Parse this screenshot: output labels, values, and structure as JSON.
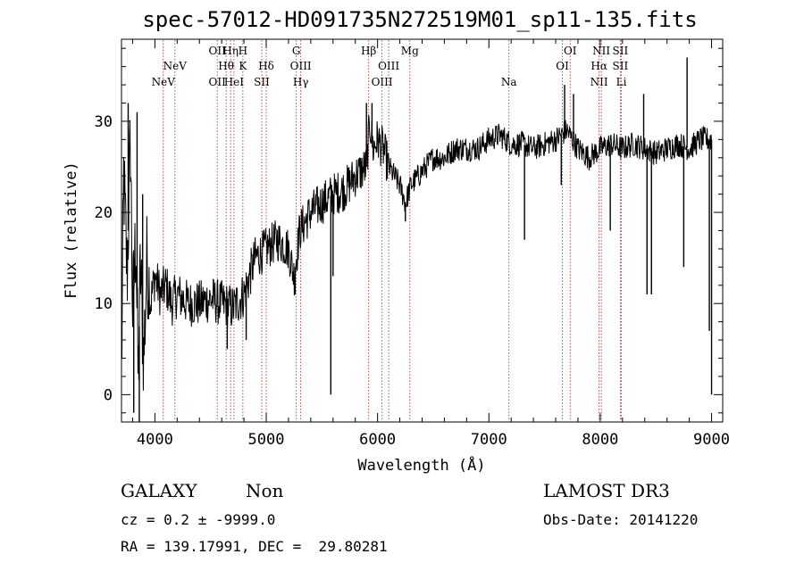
{
  "chart_data": {
    "type": "line",
    "title": "spec-57012-HD091735N272519M01_sp11-135.fits",
    "xlabel": "Wavelength (Å)",
    "ylabel": "Flux (relative)",
    "xlim": [
      3700,
      9100
    ],
    "ylim": [
      -3,
      39
    ],
    "xticks": [
      4000,
      5000,
      6000,
      7000,
      8000,
      9000
    ],
    "yticks": [
      0,
      10,
      20,
      30
    ],
    "anchors": [
      [
        3700,
        2
      ],
      [
        3720,
        24
      ],
      [
        3750,
        13
      ],
      [
        3780,
        28
      ],
      [
        3800,
        9
      ],
      [
        3830,
        18
      ],
      [
        3850,
        1
      ],
      [
        3870,
        14
      ],
      [
        3900,
        4
      ],
      [
        3930,
        15
      ],
      [
        3960,
        10
      ],
      [
        4000,
        13
      ],
      [
        4050,
        11
      ],
      [
        4100,
        12
      ],
      [
        4150,
        10
      ],
      [
        4200,
        11
      ],
      [
        4300,
        10
      ],
      [
        4400,
        10
      ],
      [
        4500,
        10.5
      ],
      [
        4600,
        10
      ],
      [
        4700,
        9.5
      ],
      [
        4800,
        11
      ],
      [
        4850,
        13
      ],
      [
        4900,
        15
      ],
      [
        5000,
        16
      ],
      [
        5100,
        17
      ],
      [
        5200,
        16
      ],
      [
        5250,
        13
      ],
      [
        5300,
        18
      ],
      [
        5400,
        20
      ],
      [
        5500,
        21
      ],
      [
        5600,
        22
      ],
      [
        5700,
        22.5
      ],
      [
        5800,
        24
      ],
      [
        5900,
        25
      ],
      [
        5930,
        30
      ],
      [
        5960,
        27
      ],
      [
        6000,
        28
      ],
      [
        6050,
        27
      ],
      [
        6100,
        25
      ],
      [
        6150,
        24
      ],
      [
        6200,
        23
      ],
      [
        6250,
        21
      ],
      [
        6300,
        23
      ],
      [
        6400,
        24.5
      ],
      [
        6500,
        26
      ],
      [
        6600,
        26
      ],
      [
        6700,
        27
      ],
      [
        6800,
        27
      ],
      [
        6900,
        27
      ],
      [
        7000,
        28
      ],
      [
        7100,
        28.5
      ],
      [
        7200,
        27.5
      ],
      [
        7300,
        27.5
      ],
      [
        7400,
        27
      ],
      [
        7500,
        27.5
      ],
      [
        7600,
        28
      ],
      [
        7700,
        29
      ],
      [
        7800,
        27
      ],
      [
        7900,
        26
      ],
      [
        8000,
        27
      ],
      [
        8100,
        27.5
      ],
      [
        8200,
        27
      ],
      [
        8300,
        27.5
      ],
      [
        8400,
        27
      ],
      [
        8500,
        26.5
      ],
      [
        8600,
        27
      ],
      [
        8700,
        27.5
      ],
      [
        8800,
        27
      ],
      [
        8900,
        28
      ],
      [
        9000,
        28
      ]
    ],
    "spikes": [
      [
        3760,
        32
      ],
      [
        3780,
        28
      ],
      [
        3810,
        -2
      ],
      [
        3840,
        31
      ],
      [
        3860,
        -3
      ],
      [
        3890,
        22
      ],
      [
        4650,
        5
      ],
      [
        4820,
        6
      ],
      [
        5260,
        11
      ],
      [
        5580,
        0
      ],
      [
        5600,
        13
      ],
      [
        5900,
        32
      ],
      [
        5950,
        32
      ],
      [
        6250,
        19
      ],
      [
        7320,
        17
      ],
      [
        7650,
        23
      ],
      [
        7680,
        34
      ],
      [
        7760,
        33
      ],
      [
        8090,
        18
      ],
      [
        8390,
        33
      ],
      [
        8420,
        11
      ],
      [
        8460,
        11
      ],
      [
        8750,
        14
      ],
      [
        8780,
        37
      ],
      [
        8980,
        7
      ],
      [
        9000,
        0
      ]
    ],
    "lines": [
      {
        "x": 4075,
        "label": "NeV",
        "row": 2
      },
      {
        "x": 4180,
        "label": "NeV",
        "row": 1
      },
      {
        "x": 4560,
        "label": "OII",
        "row": 2
      },
      {
        "x": 4560,
        "label": "OII",
        "row": 0
      },
      {
        "x": 4640,
        "label": "Hθ",
        "row": 1
      },
      {
        "x": 4680,
        "label": "Hη",
        "row": 0
      },
      {
        "x": 4710,
        "label": "HeI",
        "row": 2
      },
      {
        "x": 4790,
        "label": "K",
        "row": 1
      },
      {
        "x": 4790,
        "label": "H",
        "row": 0
      },
      {
        "x": 4960,
        "label": "SII",
        "row": 2
      },
      {
        "x": 5000,
        "label": "Hδ",
        "row": 1
      },
      {
        "x": 5270,
        "label": "G",
        "row": 0
      },
      {
        "x": 5310,
        "label": "OIII",
        "row": 1
      },
      {
        "x": 5310,
        "label": "Hγ",
        "row": 2
      },
      {
        "x": 5920,
        "label": "Hβ",
        "row": 0
      },
      {
        "x": 6040,
        "label": "OIII",
        "row": 2
      },
      {
        "x": 6100,
        "label": "OIII",
        "row": 1
      },
      {
        "x": 6290,
        "label": "Mg",
        "row": 0
      },
      {
        "x": 7180,
        "label": "Na",
        "row": 2
      },
      {
        "x": 7660,
        "label": "OI",
        "row": 1
      },
      {
        "x": 7730,
        "label": "OI",
        "row": 0
      },
      {
        "x": 7990,
        "label": "NII",
        "row": 2
      },
      {
        "x": 7990,
        "label": "Hα",
        "row": 1
      },
      {
        "x": 8010,
        "label": "NII",
        "row": 0
      },
      {
        "x": 8180,
        "label": "SII",
        "row": 0
      },
      {
        "x": 8180,
        "label": "SII",
        "row": 1
      },
      {
        "x": 8190,
        "label": "Li",
        "row": 2
      }
    ]
  },
  "info": {
    "object_class": "GALAXY",
    "subclass": "Non",
    "survey": "LAMOST DR3",
    "cz_line": "cz = 0.2 ± -9999.0",
    "obs_date_line": "Obs-Date: 20141220",
    "radec_line": "RA = 139.17991, DEC =  29.80281"
  },
  "colors": {
    "spectrum": "#000000",
    "line_markers": "#b22222",
    "axes": "#000000"
  }
}
